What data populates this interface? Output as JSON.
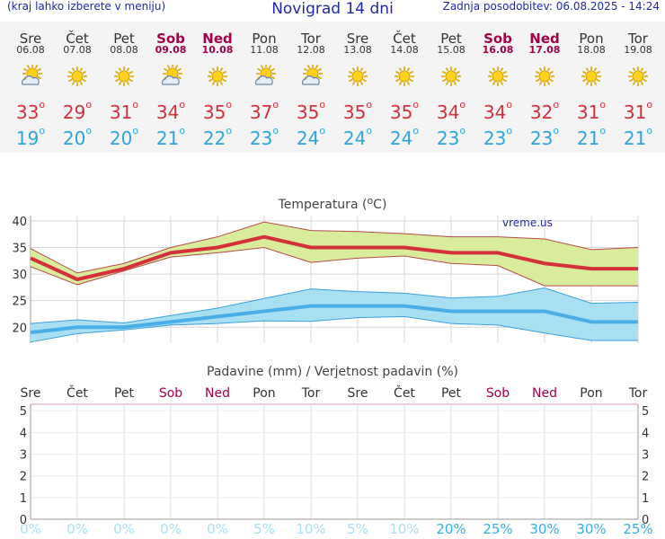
{
  "header": {
    "left_note": "(kraj lahko izberete v meniju)",
    "title": "Novigrad 14 dni",
    "updated": "Zadnja posodobitev: 06.08.2025 - 14:24"
  },
  "days": [
    {
      "name": "Sre",
      "date": "06.08",
      "weekend": false,
      "icon": "sun-cloud-icon",
      "tmax": "33",
      "tmin": "19"
    },
    {
      "name": "Čet",
      "date": "07.08",
      "weekend": false,
      "icon": "sun-icon",
      "tmax": "29",
      "tmin": "20"
    },
    {
      "name": "Pet",
      "date": "08.08",
      "weekend": false,
      "icon": "sun-icon",
      "tmax": "31",
      "tmin": "20"
    },
    {
      "name": "Sob",
      "date": "09.08",
      "weekend": true,
      "icon": "sun-cloud-icon",
      "tmax": "34",
      "tmin": "21"
    },
    {
      "name": "Ned",
      "date": "10.08",
      "weekend": true,
      "icon": "sun-icon",
      "tmax": "35",
      "tmin": "22"
    },
    {
      "name": "Pon",
      "date": "11.08",
      "weekend": false,
      "icon": "sun-cloud-icon",
      "tmax": "37",
      "tmin": "23"
    },
    {
      "name": "Tor",
      "date": "12.08",
      "weekend": false,
      "icon": "sun-cloud-icon",
      "tmax": "35",
      "tmin": "24"
    },
    {
      "name": "Sre",
      "date": "13.08",
      "weekend": false,
      "icon": "sun-icon",
      "tmax": "35",
      "tmin": "24"
    },
    {
      "name": "Čet",
      "date": "14.08",
      "weekend": false,
      "icon": "sun-icon",
      "tmax": "35",
      "tmin": "24"
    },
    {
      "name": "Pet",
      "date": "15.08",
      "weekend": false,
      "icon": "sun-icon",
      "tmax": "34",
      "tmin": "23"
    },
    {
      "name": "Sob",
      "date": "16.08",
      "weekend": true,
      "icon": "sun-icon",
      "tmax": "34",
      "tmin": "23"
    },
    {
      "name": "Ned",
      "date": "17.08",
      "weekend": true,
      "icon": "sun-icon",
      "tmax": "32",
      "tmin": "23"
    },
    {
      "name": "Pon",
      "date": "18.08",
      "weekend": false,
      "icon": "sun-icon",
      "tmax": "31",
      "tmin": "21"
    },
    {
      "name": "Tor",
      "date": "19.08",
      "weekend": false,
      "icon": "sun-icon",
      "tmax": "31",
      "tmin": "21"
    }
  ],
  "colors": {
    "max_line": "#d3303c",
    "max_band": "#d8ec9c",
    "max_band_edge": "#b84a4a",
    "min_line": "#4aaee6",
    "min_band": "#a8e0f2",
    "min_band_edge": "#3aa0e0",
    "weekend": "#a3004a",
    "precip_line": "#e0a0b0"
  },
  "chart_data": [
    {
      "type": "line",
      "title": "Temperatura (°C)",
      "title_text": "Temperatura (",
      "title_unit": "C)",
      "watermark": "vreme.us",
      "ylim": [
        17,
        41
      ],
      "yticks": [
        "40",
        "35",
        "30",
        "25",
        "20"
      ],
      "x": [
        "Sre",
        "Čet",
        "Pet",
        "Sob",
        "Ned",
        "Pon",
        "Tor",
        "Sre",
        "Čet",
        "Pet",
        "Sob",
        "Ned",
        "Pon",
        "Tor"
      ],
      "series": [
        {
          "name": "max",
          "values": [
            33,
            29,
            31,
            34,
            35,
            37,
            35,
            35,
            35,
            34,
            34,
            32,
            31,
            31
          ]
        },
        {
          "name": "max_upper",
          "values": [
            34.8,
            30.2,
            32,
            35,
            37,
            39.8,
            38.2,
            38,
            37.6,
            37,
            37,
            36.6,
            34.6,
            35
          ]
        },
        {
          "name": "max_lower",
          "values": [
            31.4,
            28,
            30.6,
            33.2,
            34,
            35,
            32.2,
            33,
            33.4,
            32,
            31.6,
            27.8,
            27.8,
            27.8
          ]
        },
        {
          "name": "min",
          "values": [
            19,
            20,
            20,
            21,
            22,
            23,
            24,
            24,
            24,
            23,
            23,
            23,
            21,
            21
          ]
        },
        {
          "name": "min_upper",
          "values": [
            20.7,
            21.4,
            20.8,
            22.2,
            23.6,
            25.4,
            27.2,
            26.7,
            26.4,
            25.5,
            25.8,
            27.4,
            24.5,
            24.7
          ]
        },
        {
          "name": "min_lower",
          "values": [
            17.2,
            18.8,
            19.5,
            20.4,
            20.7,
            21.2,
            21.1,
            21.8,
            22,
            20.7,
            20.4,
            18.9,
            17.5,
            17.5
          ]
        }
      ]
    },
    {
      "type": "bar",
      "title": "Padavine (mm) / Verjetnost padavin (%)",
      "x": [
        "Sre",
        "Čet",
        "Pet",
        "Sob",
        "Ned",
        "Pon",
        "Tor",
        "Sre",
        "Čet",
        "Pet",
        "Sob",
        "Ned",
        "Pon",
        "Tor"
      ],
      "ylim": [
        0,
        5.3
      ],
      "yticks": [
        "5",
        "4",
        "3",
        "2",
        "1",
        "0"
      ],
      "values": [
        0,
        0,
        0,
        0,
        0,
        0,
        0,
        0,
        0,
        0,
        0,
        0,
        0,
        0
      ],
      "probability": [
        "0%",
        "0%",
        "0%",
        "0%",
        "0%",
        "5%",
        "10%",
        "5%",
        "10%",
        "20%",
        "25%",
        "30%",
        "30%",
        "25%"
      ]
    }
  ]
}
